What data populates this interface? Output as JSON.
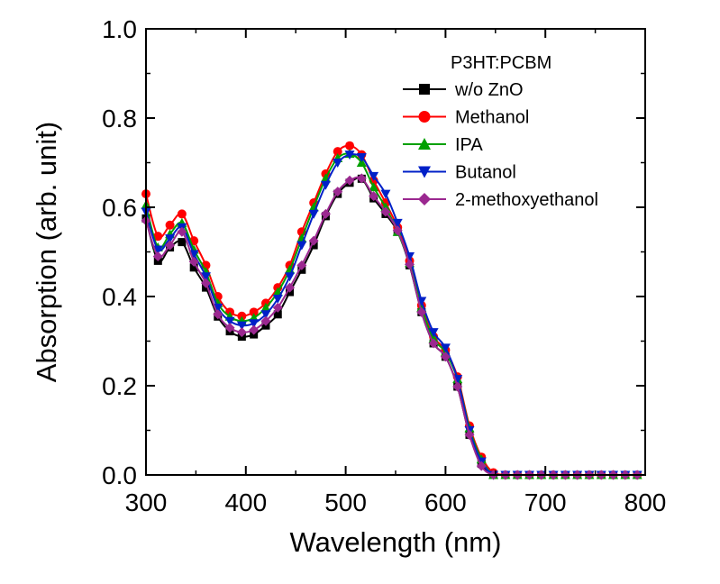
{
  "chart_data": {
    "type": "line",
    "title": "",
    "xlabel": "Wavelength (nm)",
    "ylabel": "Absorption (arb. unit)",
    "xlim": [
      300,
      800
    ],
    "ylim": [
      0.0,
      1.0
    ],
    "xticks": [
      300,
      400,
      500,
      600,
      700,
      800
    ],
    "yticks": [
      0.0,
      0.2,
      0.4,
      0.6,
      0.8,
      1.0
    ],
    "xtick_labels": [
      "300",
      "400",
      "500",
      "600",
      "700",
      "800"
    ],
    "ytick_labels": [
      "0.0",
      "0.2",
      "0.4",
      "0.6",
      "0.8",
      "1.0"
    ],
    "grid": false,
    "legend": {
      "title": "P3HT:PCBM",
      "position": "top-right"
    },
    "annotations": [],
    "marker_x": [
      300,
      312,
      324,
      336,
      348,
      360,
      372,
      384,
      396,
      408,
      420,
      432,
      444,
      456,
      468,
      480,
      492,
      504,
      516,
      528,
      540,
      552,
      564,
      576,
      588,
      600,
      612,
      624,
      636,
      648,
      660,
      672,
      684,
      696,
      708,
      720,
      732,
      744,
      756,
      768,
      780,
      792
    ],
    "series": [
      {
        "name": "w/o ZnO",
        "color": "#000000",
        "marker": "square",
        "values": [
          0.575,
          0.48,
          0.51,
          0.522,
          0.465,
          0.42,
          0.355,
          0.322,
          0.31,
          0.315,
          0.335,
          0.36,
          0.41,
          0.46,
          0.515,
          0.58,
          0.63,
          0.655,
          0.664,
          0.62,
          0.585,
          0.545,
          0.47,
          0.365,
          0.295,
          0.265,
          0.198,
          0.09,
          0.025,
          0.0,
          0.0,
          0.0,
          0.0,
          0.0,
          0.0,
          0.0,
          0.0,
          0.0,
          0.0,
          0.0,
          0.0,
          0.0
        ]
      },
      {
        "name": "Methanol",
        "color": "#ff0000",
        "marker": "circle",
        "values": [
          0.63,
          0.535,
          0.56,
          0.585,
          0.525,
          0.47,
          0.4,
          0.365,
          0.356,
          0.365,
          0.385,
          0.42,
          0.47,
          0.545,
          0.61,
          0.675,
          0.725,
          0.738,
          0.718,
          0.66,
          0.61,
          0.555,
          0.48,
          0.38,
          0.31,
          0.28,
          0.22,
          0.11,
          0.04,
          0.005,
          0.0,
          0.0,
          0.0,
          0.0,
          0.0,
          0.0,
          0.0,
          0.0,
          0.0,
          0.0,
          0.0,
          0.0
        ]
      },
      {
        "name": "IPA",
        "color": "#00a000",
        "marker": "triangle-up",
        "values": [
          0.605,
          0.51,
          0.54,
          0.565,
          0.505,
          0.455,
          0.385,
          0.355,
          0.345,
          0.352,
          0.375,
          0.41,
          0.46,
          0.53,
          0.6,
          0.665,
          0.71,
          0.72,
          0.7,
          0.645,
          0.6,
          0.545,
          0.475,
          0.375,
          0.305,
          0.275,
          0.215,
          0.105,
          0.035,
          0.0,
          0.0,
          0.0,
          0.0,
          0.0,
          0.0,
          0.0,
          0.0,
          0.0,
          0.0,
          0.0,
          0.0,
          0.0
        ]
      },
      {
        "name": "Butanol",
        "color": "#0020c8",
        "marker": "triangle-down",
        "values": [
          0.59,
          0.505,
          0.53,
          0.555,
          0.495,
          0.445,
          0.375,
          0.345,
          0.335,
          0.34,
          0.36,
          0.395,
          0.445,
          0.515,
          0.585,
          0.65,
          0.7,
          0.718,
          0.712,
          0.67,
          0.63,
          0.565,
          0.49,
          0.39,
          0.32,
          0.285,
          0.215,
          0.1,
          0.03,
          0.0,
          0.0,
          0.0,
          0.0,
          0.0,
          0.0,
          0.0,
          0.0,
          0.0,
          0.0,
          0.0,
          0.0,
          0.0
        ]
      },
      {
        "name": "2-methoxyethanol",
        "color": "#9b2890",
        "marker": "diamond",
        "values": [
          0.57,
          0.49,
          0.515,
          0.545,
          0.478,
          0.43,
          0.36,
          0.33,
          0.32,
          0.325,
          0.345,
          0.375,
          0.42,
          0.47,
          0.525,
          0.585,
          0.635,
          0.66,
          0.665,
          0.625,
          0.59,
          0.548,
          0.472,
          0.365,
          0.295,
          0.265,
          0.198,
          0.09,
          0.02,
          0.0,
          0.0,
          0.0,
          0.0,
          0.0,
          0.0,
          0.0,
          0.0,
          0.0,
          0.0,
          0.0,
          0.0,
          0.0
        ]
      }
    ]
  }
}
